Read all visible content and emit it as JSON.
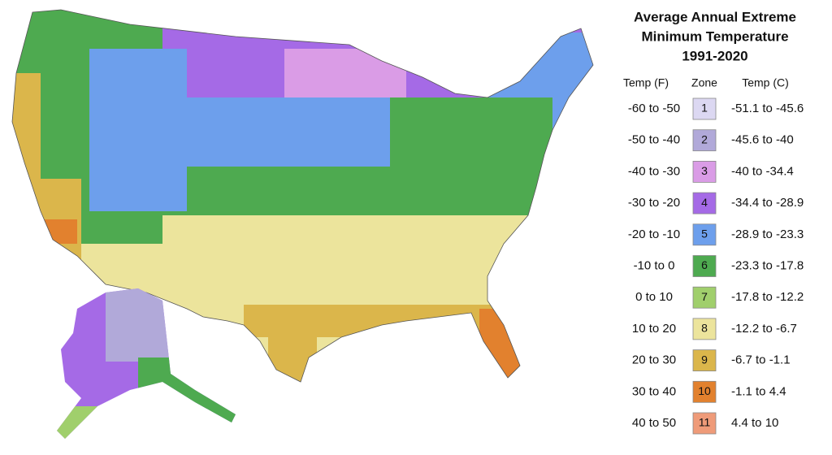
{
  "legend": {
    "title": [
      "Average Annual Extreme",
      "Minimum Temperature",
      "1991-2020"
    ],
    "headers": [
      "Temp (F)",
      "Zone",
      "Temp (C)"
    ],
    "rows": [
      {
        "f": "-60 to -50",
        "zone": "1",
        "c": "-51.1 to -45.6",
        "color": "#dcd8f2"
      },
      {
        "f": "-50 to -40",
        "zone": "2",
        "c": "-45.6 to -40",
        "color": "#b1a9d9"
      },
      {
        "f": "-40 to -30",
        "zone": "3",
        "c": "-40 to -34.4",
        "color": "#da9ce6"
      },
      {
        "f": "-30 to -20",
        "zone": "4",
        "c": "-34.4 to -28.9",
        "color": "#a56ae6"
      },
      {
        "f": "-20 to -10",
        "zone": "5",
        "c": "-28.9 to -23.3",
        "color": "#6d9fec"
      },
      {
        "f": "-10 to 0",
        "zone": "6",
        "c": "-23.3 to -17.8",
        "color": "#4eaa50"
      },
      {
        "f": "0 to 10",
        "zone": "7",
        "c": "-17.8 to -12.2",
        "color": "#a0cf6c"
      },
      {
        "f": "10 to 20",
        "zone": "8",
        "c": "-12.2 to -6.7",
        "color": "#ece49c"
      },
      {
        "f": "20 to 30",
        "zone": "9",
        "c": "-6.7 to -1.1",
        "color": "#dbb64b"
      },
      {
        "f": "30 to 40",
        "zone": "10",
        "c": "-1.1 to 4.4",
        "color": "#e2812e"
      },
      {
        "f": "40 to 50",
        "zone": "11",
        "c": "4.4 to 10",
        "color": "#ef9b79"
      }
    ]
  }
}
